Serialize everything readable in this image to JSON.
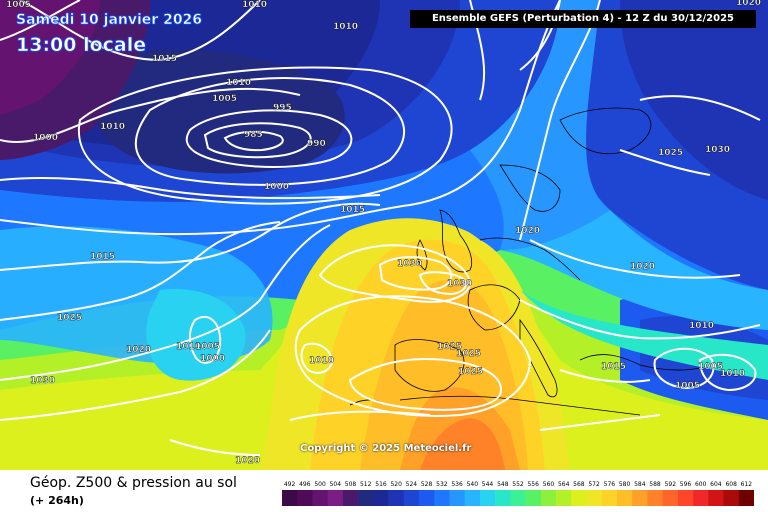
{
  "header": {
    "date": "Samedi 10 janvier 2026",
    "time": "13:00 locale",
    "model": "Ensemble GEFS  (Perturbation 4)  -  12 Z du 30/12/2025"
  },
  "footer": {
    "title": "Géop. Z500 & pression au sol",
    "subtitle": "(+ 264h)",
    "copyright": "Copyright © 2025 Meteociel.fr"
  },
  "legend": {
    "values": [
      "492",
      "496",
      "500",
      "504",
      "508",
      "512",
      "516",
      "520",
      "524",
      "528",
      "532",
      "536",
      "540",
      "544",
      "548",
      "552",
      "556",
      "560",
      "564",
      "568",
      "572",
      "576",
      "580",
      "584",
      "588",
      "592",
      "596",
      "600",
      "604",
      "608",
      "612"
    ],
    "colors": [
      "#3c0a46",
      "#500a5a",
      "#641470",
      "#7a1e86",
      "#4a1a6a",
      "#222a80",
      "#1c2896",
      "#1e34b4",
      "#1f46d2",
      "#1c5af0",
      "#1e78ff",
      "#2896ff",
      "#28b4ff",
      "#28d2f0",
      "#28e6c8",
      "#3cf096",
      "#5af064",
      "#8cf03c",
      "#b4f028",
      "#dcf01e",
      "#f0e628",
      "#ffd228",
      "#ffbe28",
      "#ffa028",
      "#ff8228",
      "#ff6428",
      "#ff4628",
      "#f02828",
      "#d21414",
      "#aa0a0a",
      "#6e0000"
    ]
  },
  "isobar_labels": [
    {
      "text": "1005"
    },
    {
      "text": "1010"
    },
    {
      "text": "1010"
    },
    {
      "text": "1015"
    },
    {
      "text": "1010"
    },
    {
      "text": "1005"
    },
    {
      "text": "995"
    },
    {
      "text": "985"
    },
    {
      "text": "990"
    },
    {
      "text": "1010"
    },
    {
      "text": "1000"
    },
    {
      "text": "1000"
    },
    {
      "text": "1015"
    },
    {
      "text": "1015"
    },
    {
      "text": "1025"
    },
    {
      "text": "1020"
    },
    {
      "text": "1010"
    },
    {
      "text": "1005"
    },
    {
      "text": "1000"
    },
    {
      "text": "1030"
    },
    {
      "text": "1010"
    },
    {
      "text": "1030"
    },
    {
      "text": "1030"
    },
    {
      "text": "1020"
    },
    {
      "text": "1025"
    },
    {
      "text": "1025"
    },
    {
      "text": "1025"
    },
    {
      "text": "1020"
    },
    {
      "text": "1025"
    },
    {
      "text": "1030"
    },
    {
      "text": "1020"
    },
    {
      "text": "1010"
    },
    {
      "text": "1015"
    },
    {
      "text": "1005"
    },
    {
      "text": "1010"
    },
    {
      "text": "1005"
    },
    {
      "text": "1020"
    }
  ]
}
